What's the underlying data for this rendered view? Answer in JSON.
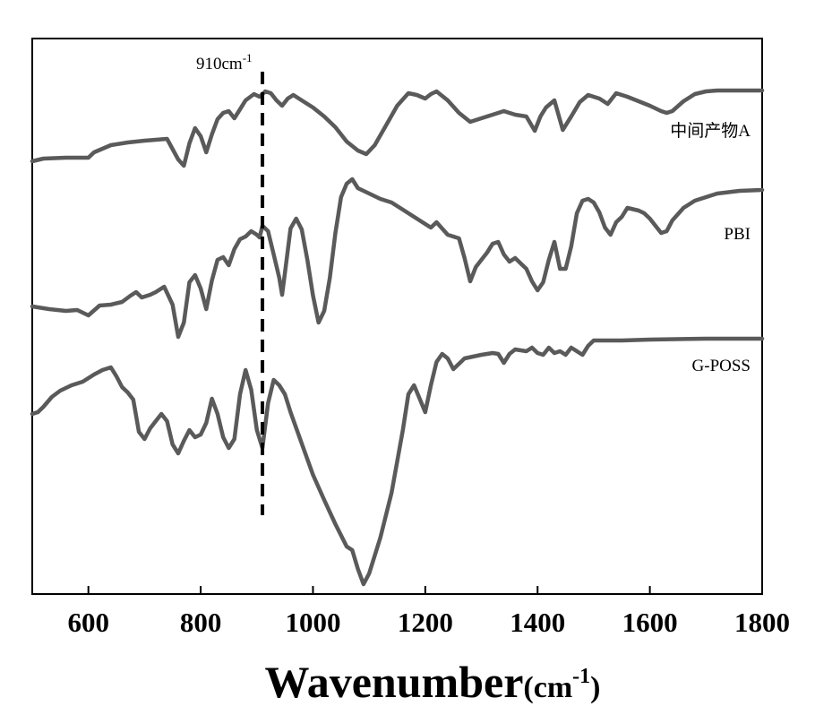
{
  "chart_data": {
    "type": "line",
    "title": "",
    "xlabel": "Wavenumber",
    "xlabel_unit": "(cm",
    "xlabel_unit_sup": "-1",
    "xlabel_unit_close": ")",
    "xlim": [
      500,
      1800
    ],
    "xticks": [
      600,
      800,
      1000,
      1200,
      1400,
      1600,
      1800
    ],
    "ylabel": "",
    "annotation": {
      "x": 910,
      "label": "910cm",
      "label_sup": "-1"
    },
    "series": [
      {
        "name": "中间产物A",
        "points": [
          [
            500,
            180
          ],
          [
            520,
            177
          ],
          [
            560,
            176
          ],
          [
            600,
            176
          ],
          [
            610,
            170
          ],
          [
            640,
            162
          ],
          [
            670,
            159
          ],
          [
            700,
            157
          ],
          [
            740,
            155
          ],
          [
            760,
            178
          ],
          [
            770,
            185
          ],
          [
            780,
            160
          ],
          [
            790,
            143
          ],
          [
            800,
            152
          ],
          [
            810,
            170
          ],
          [
            820,
            150
          ],
          [
            830,
            133
          ],
          [
            840,
            126
          ],
          [
            850,
            124
          ],
          [
            860,
            132
          ],
          [
            870,
            122
          ],
          [
            880,
            112
          ],
          [
            895,
            105
          ],
          [
            905,
            108
          ],
          [
            915,
            102
          ],
          [
            925,
            104
          ],
          [
            935,
            112
          ],
          [
            945,
            118
          ],
          [
            955,
            110
          ],
          [
            965,
            106
          ],
          [
            980,
            112
          ],
          [
            1000,
            120
          ],
          [
            1020,
            130
          ],
          [
            1040,
            142
          ],
          [
            1060,
            158
          ],
          [
            1080,
            168
          ],
          [
            1095,
            172
          ],
          [
            1110,
            162
          ],
          [
            1130,
            140
          ],
          [
            1150,
            118
          ],
          [
            1170,
            104
          ],
          [
            1185,
            106
          ],
          [
            1200,
            110
          ],
          [
            1210,
            105
          ],
          [
            1220,
            102
          ],
          [
            1240,
            112
          ],
          [
            1260,
            126
          ],
          [
            1280,
            136
          ],
          [
            1300,
            132
          ],
          [
            1320,
            128
          ],
          [
            1340,
            124
          ],
          [
            1360,
            128
          ],
          [
            1380,
            130
          ],
          [
            1395,
            146
          ],
          [
            1405,
            130
          ],
          [
            1415,
            120
          ],
          [
            1430,
            112
          ],
          [
            1445,
            145
          ],
          [
            1460,
            130
          ],
          [
            1475,
            114
          ],
          [
            1490,
            106
          ],
          [
            1510,
            110
          ],
          [
            1525,
            116
          ],
          [
            1540,
            104
          ],
          [
            1560,
            108
          ],
          [
            1580,
            113
          ],
          [
            1600,
            118
          ],
          [
            1620,
            124
          ],
          [
            1630,
            126
          ],
          [
            1640,
            124
          ],
          [
            1660,
            113
          ],
          [
            1680,
            105
          ],
          [
            1700,
            102
          ],
          [
            1720,
            101
          ],
          [
            1760,
            101
          ],
          [
            1800,
            101
          ]
        ]
      },
      {
        "name": "PBI",
        "points": [
          [
            500,
            342
          ],
          [
            530,
            345
          ],
          [
            560,
            347
          ],
          [
            580,
            346
          ],
          [
            600,
            352
          ],
          [
            620,
            341
          ],
          [
            640,
            340
          ],
          [
            660,
            337
          ],
          [
            675,
            330
          ],
          [
            685,
            326
          ],
          [
            695,
            332
          ],
          [
            710,
            329
          ],
          [
            720,
            326
          ],
          [
            735,
            320
          ],
          [
            750,
            340
          ],
          [
            760,
            376
          ],
          [
            770,
            360
          ],
          [
            780,
            315
          ],
          [
            790,
            307
          ],
          [
            800,
            322
          ],
          [
            810,
            345
          ],
          [
            820,
            313
          ],
          [
            830,
            290
          ],
          [
            840,
            287
          ],
          [
            850,
            296
          ],
          [
            860,
            278
          ],
          [
            870,
            267
          ],
          [
            880,
            264
          ],
          [
            890,
            258
          ],
          [
            900,
            262
          ],
          [
            905,
            265
          ],
          [
            910,
            252
          ],
          [
            920,
            258
          ],
          [
            930,
            284
          ],
          [
            940,
            310
          ],
          [
            945,
            329
          ],
          [
            950,
            305
          ],
          [
            960,
            255
          ],
          [
            970,
            244
          ],
          [
            980,
            256
          ],
          [
            990,
            290
          ],
          [
            1000,
            330
          ],
          [
            1010,
            360
          ],
          [
            1020,
            347
          ],
          [
            1030,
            310
          ],
          [
            1040,
            260
          ],
          [
            1050,
            220
          ],
          [
            1060,
            205
          ],
          [
            1070,
            200
          ],
          [
            1080,
            210
          ],
          [
            1100,
            216
          ],
          [
            1120,
            222
          ],
          [
            1140,
            226
          ],
          [
            1160,
            234
          ],
          [
            1180,
            242
          ],
          [
            1200,
            250
          ],
          [
            1210,
            254
          ],
          [
            1220,
            248
          ],
          [
            1240,
            262
          ],
          [
            1260,
            266
          ],
          [
            1270,
            288
          ],
          [
            1280,
            314
          ],
          [
            1290,
            298
          ],
          [
            1300,
            290
          ],
          [
            1310,
            282
          ],
          [
            1320,
            272
          ],
          [
            1330,
            270
          ],
          [
            1340,
            284
          ],
          [
            1350,
            292
          ],
          [
            1360,
            288
          ],
          [
            1370,
            294
          ],
          [
            1380,
            300
          ],
          [
            1390,
            314
          ],
          [
            1400,
            324
          ],
          [
            1410,
            315
          ],
          [
            1420,
            290
          ],
          [
            1430,
            270
          ],
          [
            1440,
            300
          ],
          [
            1450,
            300
          ],
          [
            1460,
            275
          ],
          [
            1470,
            238
          ],
          [
            1480,
            224
          ],
          [
            1490,
            222
          ],
          [
            1500,
            226
          ],
          [
            1510,
            237
          ],
          [
            1520,
            254
          ],
          [
            1530,
            262
          ],
          [
            1540,
            248
          ],
          [
            1550,
            242
          ],
          [
            1560,
            232
          ],
          [
            1580,
            235
          ],
          [
            1590,
            238
          ],
          [
            1600,
            244
          ],
          [
            1610,
            252
          ],
          [
            1620,
            260
          ],
          [
            1630,
            258
          ],
          [
            1640,
            246
          ],
          [
            1660,
            232
          ],
          [
            1680,
            224
          ],
          [
            1700,
            220
          ],
          [
            1720,
            216
          ],
          [
            1760,
            213
          ],
          [
            1800,
            212
          ]
        ]
      },
      {
        "name": "G-POSS",
        "points": [
          [
            500,
            462
          ],
          [
            510,
            460
          ],
          [
            520,
            454
          ],
          [
            535,
            443
          ],
          [
            550,
            436
          ],
          [
            570,
            430
          ],
          [
            590,
            426
          ],
          [
            610,
            418
          ],
          [
            625,
            413
          ],
          [
            640,
            410
          ],
          [
            650,
            420
          ],
          [
            660,
            432
          ],
          [
            670,
            438
          ],
          [
            680,
            446
          ],
          [
            690,
            482
          ],
          [
            700,
            490
          ],
          [
            710,
            478
          ],
          [
            720,
            470
          ],
          [
            730,
            462
          ],
          [
            740,
            470
          ],
          [
            750,
            496
          ],
          [
            760,
            506
          ],
          [
            770,
            492
          ],
          [
            780,
            480
          ],
          [
            790,
            488
          ],
          [
            800,
            485
          ],
          [
            810,
            472
          ],
          [
            820,
            445
          ],
          [
            830,
            462
          ],
          [
            840,
            488
          ],
          [
            850,
            500
          ],
          [
            860,
            490
          ],
          [
            870,
            440
          ],
          [
            880,
            413
          ],
          [
            890,
            435
          ],
          [
            900,
            480
          ],
          [
            910,
            500
          ],
          [
            920,
            450
          ],
          [
            930,
            424
          ],
          [
            940,
            430
          ],
          [
            950,
            440
          ],
          [
            960,
            460
          ],
          [
            980,
            495
          ],
          [
            1000,
            530
          ],
          [
            1020,
            558
          ],
          [
            1040,
            585
          ],
          [
            1060,
            610
          ],
          [
            1070,
            614
          ],
          [
            1080,
            635
          ],
          [
            1090,
            652
          ],
          [
            1100,
            640
          ],
          [
            1120,
            600
          ],
          [
            1140,
            550
          ],
          [
            1160,
            480
          ],
          [
            1170,
            440
          ],
          [
            1180,
            430
          ],
          [
            1190,
            445
          ],
          [
            1200,
            460
          ],
          [
            1210,
            430
          ],
          [
            1220,
            404
          ],
          [
            1230,
            395
          ],
          [
            1240,
            400
          ],
          [
            1250,
            412
          ],
          [
            1260,
            406
          ],
          [
            1270,
            400
          ],
          [
            1300,
            396
          ],
          [
            1320,
            394
          ],
          [
            1330,
            395
          ],
          [
            1340,
            405
          ],
          [
            1350,
            395
          ],
          [
            1360,
            390
          ],
          [
            1380,
            392
          ],
          [
            1390,
            388
          ],
          [
            1400,
            394
          ],
          [
            1410,
            396
          ],
          [
            1420,
            388
          ],
          [
            1430,
            394
          ],
          [
            1440,
            392
          ],
          [
            1450,
            396
          ],
          [
            1460,
            388
          ],
          [
            1470,
            392
          ],
          [
            1480,
            396
          ],
          [
            1490,
            386
          ],
          [
            1500,
            380
          ],
          [
            1550,
            380
          ],
          [
            1600,
            379
          ],
          [
            1700,
            378
          ],
          [
            1800,
            378
          ]
        ]
      }
    ]
  }
}
